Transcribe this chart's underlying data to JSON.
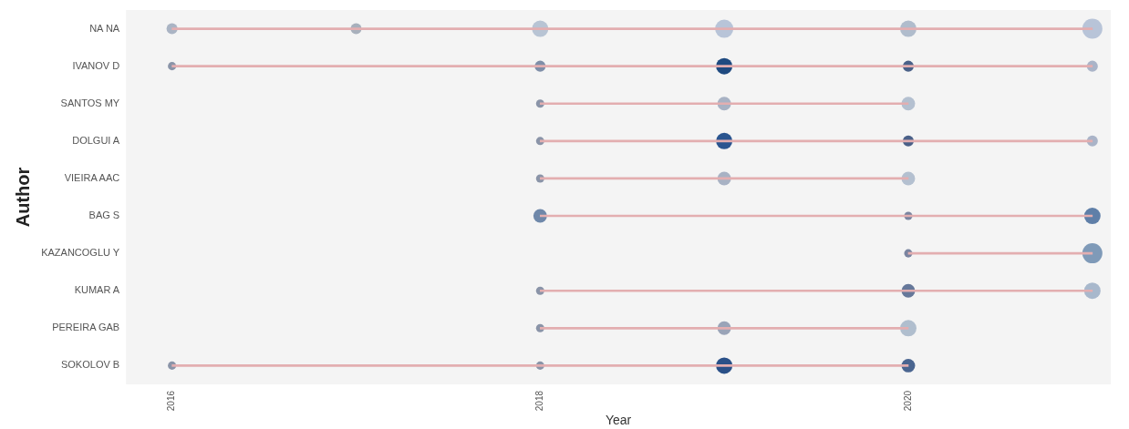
{
  "chart_data": {
    "type": "bubble",
    "orientation": "horizontal",
    "xlabel": "Year",
    "ylabel": "Author",
    "categories": [
      "NA NA",
      "IVANOV D",
      "SANTOS MY",
      "DOLGUI A",
      "VIEIRA AAC",
      "BAG S",
      "KAZANCOGLU Y",
      "KUMAR A",
      "PEREIRA GAB",
      "SOKOLOV B"
    ],
    "xlim": [
      2015.75,
      2021.1
    ],
    "xticks": [
      2016,
      2018,
      2020
    ],
    "grid": false,
    "legend": false,
    "series": [
      {
        "type": "bar",
        "color": "#e3aeb0",
        "base": [
          2016,
          2016,
          2018,
          2018,
          2018,
          2018,
          2020,
          2018,
          2018,
          2016
        ],
        "values": [
          5,
          5,
          2,
          3,
          2,
          3,
          1,
          3,
          2,
          4
        ]
      },
      {
        "values": [
          2016,
          2016,
          null,
          null,
          null,
          null,
          null,
          null,
          null,
          2016
        ],
        "sizes": [
          0.3,
          0.17,
          null,
          null,
          null,
          null,
          null,
          null,
          null,
          0.17
        ],
        "colors": [
          "#aab4c4",
          "#8a94a8",
          null,
          null,
          null,
          null,
          null,
          null,
          null,
          "#8a94a8"
        ]
      },
      {
        "values": [
          2017,
          null,
          null,
          null,
          null,
          null,
          null,
          null,
          null,
          null
        ],
        "sizes": [
          0.3,
          null,
          null,
          null,
          null,
          null,
          null,
          null,
          null,
          null
        ],
        "colors": [
          "#a8b0bc",
          null,
          null,
          null,
          null,
          null,
          null,
          null,
          null,
          null
        ]
      },
      {
        "values": [
          2018,
          2018,
          2018,
          2018,
          2018,
          2018,
          null,
          2018,
          2018,
          2018
        ],
        "sizes": [
          0.67,
          0.3,
          0.17,
          0.17,
          0.17,
          0.46,
          null,
          0.17,
          0.17,
          0.17
        ],
        "colors": [
          "#b8c4d4",
          "#7f8ea8",
          "#8a94a8",
          "#8a94a8",
          "#8a94a8",
          "#6f88aa",
          null,
          "#8a94a8",
          "#8a94a8",
          "#8a94a8"
        ]
      },
      {
        "values": [
          2019,
          2019,
          2019,
          2019,
          2019,
          null,
          null,
          null,
          2019,
          2019
        ],
        "sizes": [
          0.83,
          0.67,
          0.46,
          0.67,
          0.46,
          null,
          null,
          null,
          0.46,
          0.67
        ],
        "colors": [
          "#b8c4d8",
          "#1f4a80",
          "#a8b2c4",
          "#2a5590",
          "#a8b2c4",
          null,
          null,
          null,
          "#9aa4b8",
          "#2a5088"
        ]
      },
      {
        "values": [
          2020,
          2020,
          2020,
          2020,
          2020,
          2020,
          2020,
          2020,
          2020,
          2020
        ],
        "sizes": [
          0.67,
          0.3,
          0.46,
          0.3,
          0.46,
          0.17,
          0.17,
          0.46,
          0.67,
          0.46
        ],
        "colors": [
          "#b0bccc",
          "#4a6088",
          "#b4c0d0",
          "#4a6088",
          "#b4c0d0",
          "#7a84a0",
          "#7a84a0",
          "#66789a",
          "#b0bece",
          "#4a6590"
        ]
      },
      {
        "values": [
          2021,
          2021,
          null,
          2021,
          null,
          2021,
          2021,
          2021,
          null,
          null
        ],
        "sizes": [
          1,
          0.3,
          null,
          0.3,
          null,
          0.67,
          1,
          0.67,
          null,
          null
        ],
        "colors": [
          "#b8c4d8",
          "#aab4c8",
          null,
          "#aab4c8",
          null,
          "#5f7fa8",
          "#7f9ab8",
          "#a8b8cc",
          null,
          null
        ]
      }
    ]
  }
}
